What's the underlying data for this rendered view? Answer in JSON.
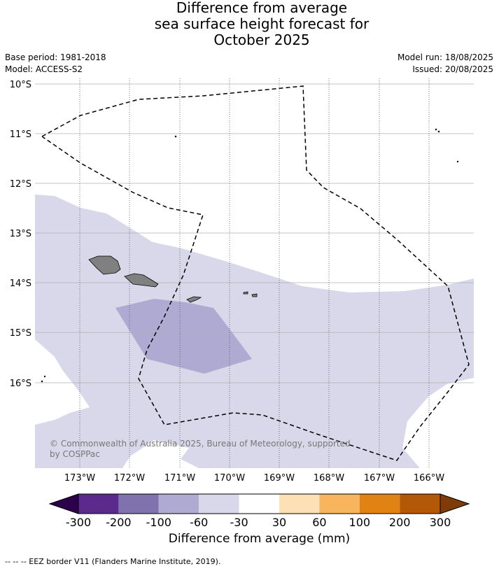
{
  "title": {
    "line1": "Difference from average",
    "line2": "sea surface height forecast for",
    "line3": "October 2025"
  },
  "meta": {
    "base_period": "Base period: 1981-2018",
    "model": "Model: ACCESS-S2",
    "model_run": "Model run: 18/08/2025",
    "issued": "Issued: 20/08/2025"
  },
  "map": {
    "lat_labels": [
      "10°S",
      "11°S",
      "12°S",
      "13°S",
      "14°S",
      "15°S",
      "16°S"
    ],
    "lon_labels": [
      "173°W",
      "172°W",
      "171°W",
      "170°W",
      "169°W",
      "168°W",
      "167°W",
      "166°W"
    ],
    "copyright_line1": "© Commonwealth of Australia 2025, Bureau of Meteorology, supported",
    "copyright_line2": "by COSPPac",
    "colors": {
      "band_-300_-200": "#5a2b8d",
      "band_-200_-100": "#7f72ad",
      "band_-100_-60": "#aeaad1",
      "band_-60_-30": "#d8d8ea",
      "band_-30_30": "#ffffff",
      "band_30_60": "#fde0b6",
      "band_60_100": "#f9b45e",
      "band_100_200": "#e08214",
      "band_200_300": "#b35806",
      "under": "#2d004b",
      "over": "#7f3b08",
      "land": "#808080"
    }
  },
  "colorbar": {
    "ticks": [
      "-300",
      "-200",
      "-100",
      "-60",
      "-30",
      "30",
      "60",
      "100",
      "200",
      "300"
    ],
    "title": "Difference from average (mm)"
  },
  "footer": "--  --  -- EEZ border V11 (Flanders Marine Institute, 2019)."
}
